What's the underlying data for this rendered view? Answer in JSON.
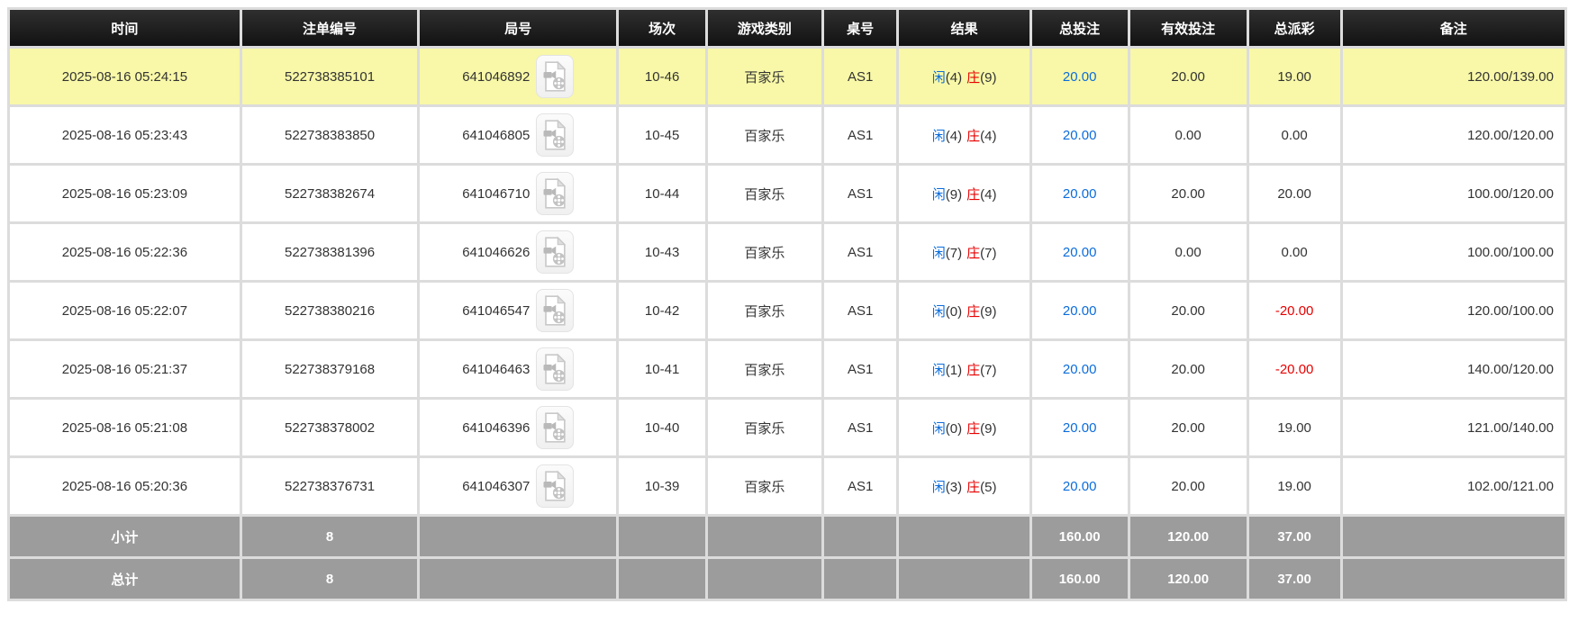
{
  "colors": {
    "header_bg": "#1b1b1b",
    "row_highlight": "#f8f8a8",
    "summary_bg": "#9c9c9c",
    "bet_amount_blue": "#0b6cdb",
    "player_blue": "#0b6cdb",
    "banker_red": "#e80000",
    "negative_red": "#e80000"
  },
  "columns": [
    {
      "key": "time",
      "label": "时间",
      "width": "15.1%"
    },
    {
      "key": "bet_id",
      "label": "注单编号",
      "width": "11.5%"
    },
    {
      "key": "round",
      "label": "局号",
      "width": "12.9%"
    },
    {
      "key": "session",
      "label": "场次",
      "width": "5.6%"
    },
    {
      "key": "game",
      "label": "游戏类别",
      "width": "7.4%"
    },
    {
      "key": "table_no",
      "label": "桌号",
      "width": "4.7%"
    },
    {
      "key": "result",
      "label": "结果",
      "width": "8.5%"
    },
    {
      "key": "total_bet",
      "label": "总投注",
      "width": "6.2%"
    },
    {
      "key": "valid_bet",
      "label": "有效投注",
      "width": "7.6%"
    },
    {
      "key": "payout",
      "label": "总派彩",
      "width": "5.9%"
    },
    {
      "key": "remark",
      "label": "备注",
      "width": "14.6%"
    }
  ],
  "icon": {
    "video_button": "video-file-icon"
  },
  "rows": [
    {
      "highlighted": true,
      "time": "2025-08-16 05:24:15",
      "bet_id": "522738385101",
      "round": "641046892",
      "session": "10-46",
      "game": "百家乐",
      "table_no": "AS1",
      "player": "闲",
      "player_score": "(4)",
      "banker": "庄",
      "banker_score": "(9)",
      "total_bet": "20.00",
      "valid_bet": "20.00",
      "payout": "19.00",
      "payout_negative": false,
      "remark": "120.00/139.00"
    },
    {
      "highlighted": false,
      "time": "2025-08-16 05:23:43",
      "bet_id": "522738383850",
      "round": "641046805",
      "session": "10-45",
      "game": "百家乐",
      "table_no": "AS1",
      "player": "闲",
      "player_score": "(4)",
      "banker": "庄",
      "banker_score": "(4)",
      "total_bet": "20.00",
      "valid_bet": "0.00",
      "payout": "0.00",
      "payout_negative": false,
      "remark": "120.00/120.00"
    },
    {
      "highlighted": false,
      "time": "2025-08-16 05:23:09",
      "bet_id": "522738382674",
      "round": "641046710",
      "session": "10-44",
      "game": "百家乐",
      "table_no": "AS1",
      "player": "闲",
      "player_score": "(9)",
      "banker": "庄",
      "banker_score": "(4)",
      "total_bet": "20.00",
      "valid_bet": "20.00",
      "payout": "20.00",
      "payout_negative": false,
      "remark": "100.00/120.00"
    },
    {
      "highlighted": false,
      "time": "2025-08-16 05:22:36",
      "bet_id": "522738381396",
      "round": "641046626",
      "session": "10-43",
      "game": "百家乐",
      "table_no": "AS1",
      "player": "闲",
      "player_score": "(7)",
      "banker": "庄",
      "banker_score": "(7)",
      "total_bet": "20.00",
      "valid_bet": "0.00",
      "payout": "0.00",
      "payout_negative": false,
      "remark": "100.00/100.00"
    },
    {
      "highlighted": false,
      "time": "2025-08-16 05:22:07",
      "bet_id": "522738380216",
      "round": "641046547",
      "session": "10-42",
      "game": "百家乐",
      "table_no": "AS1",
      "player": "闲",
      "player_score": "(0)",
      "banker": "庄",
      "banker_score": "(9)",
      "total_bet": "20.00",
      "valid_bet": "20.00",
      "payout": "-20.00",
      "payout_negative": true,
      "remark": "120.00/100.00"
    },
    {
      "highlighted": false,
      "time": "2025-08-16 05:21:37",
      "bet_id": "522738379168",
      "round": "641046463",
      "session": "10-41",
      "game": "百家乐",
      "table_no": "AS1",
      "player": "闲",
      "player_score": "(1)",
      "banker": "庄",
      "banker_score": "(7)",
      "total_bet": "20.00",
      "valid_bet": "20.00",
      "payout": "-20.00",
      "payout_negative": true,
      "remark": "140.00/120.00"
    },
    {
      "highlighted": false,
      "time": "2025-08-16 05:21:08",
      "bet_id": "522738378002",
      "round": "641046396",
      "session": "10-40",
      "game": "百家乐",
      "table_no": "AS1",
      "player": "闲",
      "player_score": "(0)",
      "banker": "庄",
      "banker_score": "(9)",
      "total_bet": "20.00",
      "valid_bet": "20.00",
      "payout": "19.00",
      "payout_negative": false,
      "remark": "121.00/140.00"
    },
    {
      "highlighted": false,
      "time": "2025-08-16 05:20:36",
      "bet_id": "522738376731",
      "round": "641046307",
      "session": "10-39",
      "game": "百家乐",
      "table_no": "AS1",
      "player": "闲",
      "player_score": "(3)",
      "banker": "庄",
      "banker_score": "(5)",
      "total_bet": "20.00",
      "valid_bet": "20.00",
      "payout": "19.00",
      "payout_negative": false,
      "remark": "102.00/121.00"
    }
  ],
  "summary": {
    "subtotal": {
      "label": "小计",
      "count": "8",
      "total_bet": "160.00",
      "valid_bet": "120.00",
      "payout": "37.00"
    },
    "total": {
      "label": "总计",
      "count": "8",
      "total_bet": "160.00",
      "valid_bet": "120.00",
      "payout": "37.00"
    }
  }
}
